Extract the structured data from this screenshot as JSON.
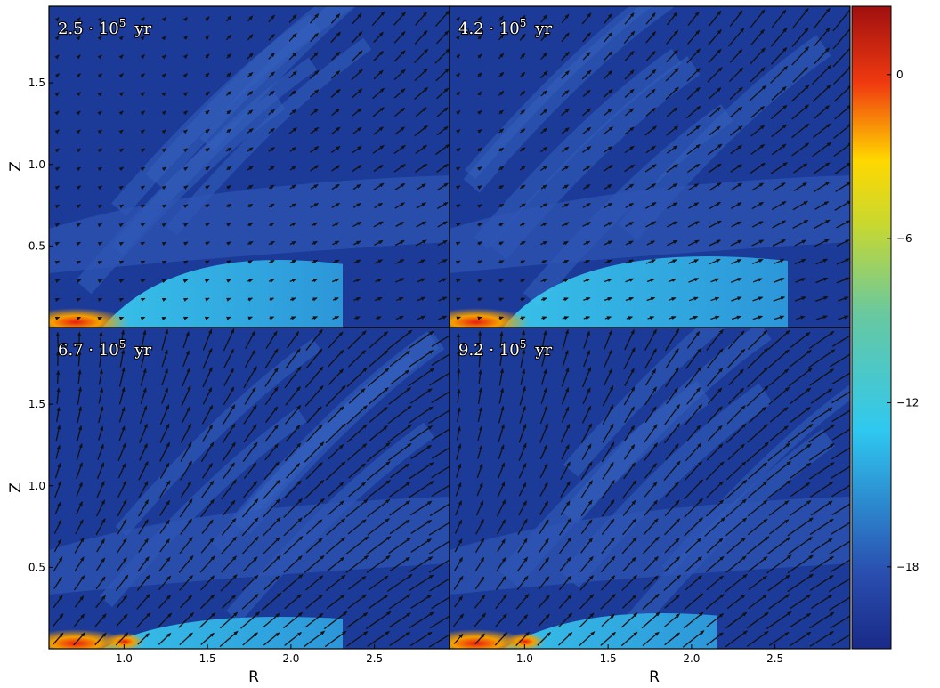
{
  "chart_data": {
    "type": "heatmap",
    "layout": "2x2 small multiples, shared axes, vector (arrow) overlay",
    "xlabel": "R",
    "ylabel": "Z",
    "x_ticks": [
      "1.0",
      "1.5",
      "2.0",
      "2.5"
    ],
    "y_ticks": [
      "0.5",
      "1.0",
      "1.5"
    ],
    "xlim": [
      0.55,
      2.95
    ],
    "ylim": [
      0.0,
      1.97
    ],
    "colorbar": {
      "ticks": [
        "0",
        "−6",
        "−12",
        "−18"
      ],
      "range": [
        -21,
        2.5
      ],
      "colormap": "jet"
    },
    "panels": [
      {
        "title_mant": "2.5",
        "title_exp": "5",
        "title_unit": "yr"
      },
      {
        "title_mant": "4.2",
        "title_exp": "5",
        "title_unit": "yr"
      },
      {
        "title_mant": "6.7",
        "title_exp": "5",
        "title_unit": "yr"
      },
      {
        "title_mant": "9.2",
        "title_exp": "5",
        "title_unit": "yr"
      }
    ],
    "colors": {
      "background": "#1c3a98",
      "arrow": "#111111",
      "frame": "#000000"
    }
  }
}
